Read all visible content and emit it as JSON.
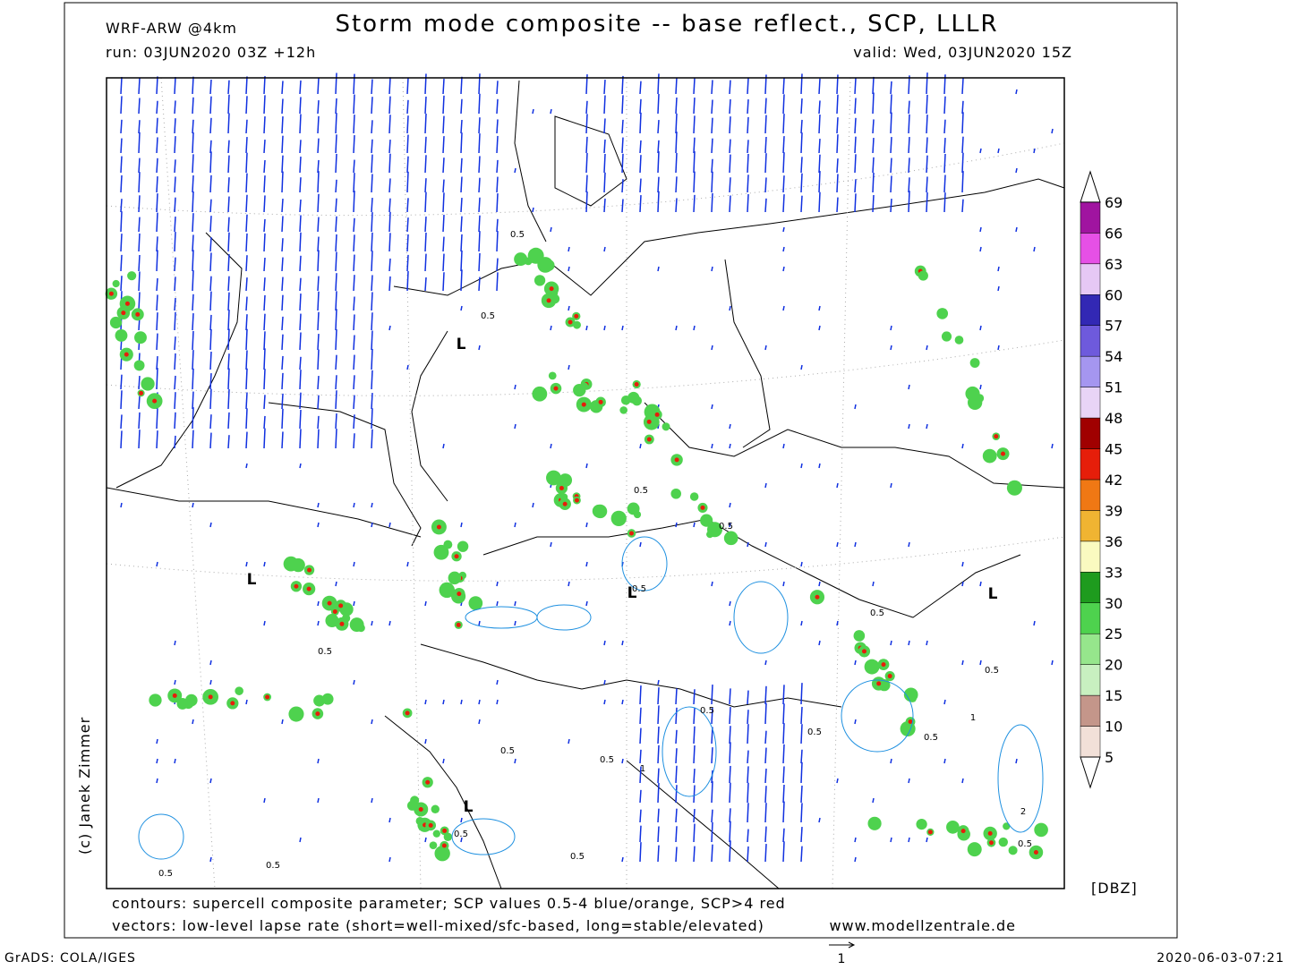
{
  "header": {
    "model": "WRF-ARW @4km",
    "title": "Storm mode composite -- base reflect., SCP, LLLR",
    "run": "run: 03JUN2020 03Z +12h",
    "valid": "valid: Wed, 03JUN2020 15Z"
  },
  "map": {
    "lows": [
      "L",
      "L",
      "L",
      "L",
      "L"
    ],
    "contour_labels": [
      0.5,
      0.5,
      0.5,
      0.5,
      0.5,
      0.5,
      0.5,
      0.5,
      0.5,
      0.5,
      0.5,
      0.5,
      0.5,
      0.5,
      0.5,
      0.5,
      0.5,
      0.5,
      1,
      1,
      2
    ],
    "copyright": "(c) Janek Zimmer"
  },
  "legend": {
    "levels": [
      5,
      10,
      15,
      20,
      25,
      30,
      33,
      36,
      39,
      42,
      45,
      48,
      51,
      54,
      57,
      60,
      63,
      66,
      69
    ],
    "colors": [
      "#f2e0d8",
      "#c4968a",
      "#c8f0c0",
      "#96e68c",
      "#4ed24e",
      "#1e9b1e",
      "#fafac0",
      "#f0b432",
      "#f07814",
      "#e61e0a",
      "#a00000",
      "#e8d4f6",
      "#a596f0",
      "#6e5adc",
      "#3228b4",
      "#e6c8f5",
      "#e650e6",
      "#a014a0"
    ],
    "unit": "[DBZ]"
  },
  "footer": {
    "contours": "contours: supercell composite parameter; SCP values 0.5-4 blue/orange, SCP>4 red",
    "vectors": "vectors: low-level lapse rate (short=well-mixed/sfc-based, long=stable/elevated)",
    "website": "www.modellzentrale.de",
    "software": "GrADS: COLA/IGES",
    "timestamp": "2020-06-03-07:21",
    "vector_scale": 1
  }
}
